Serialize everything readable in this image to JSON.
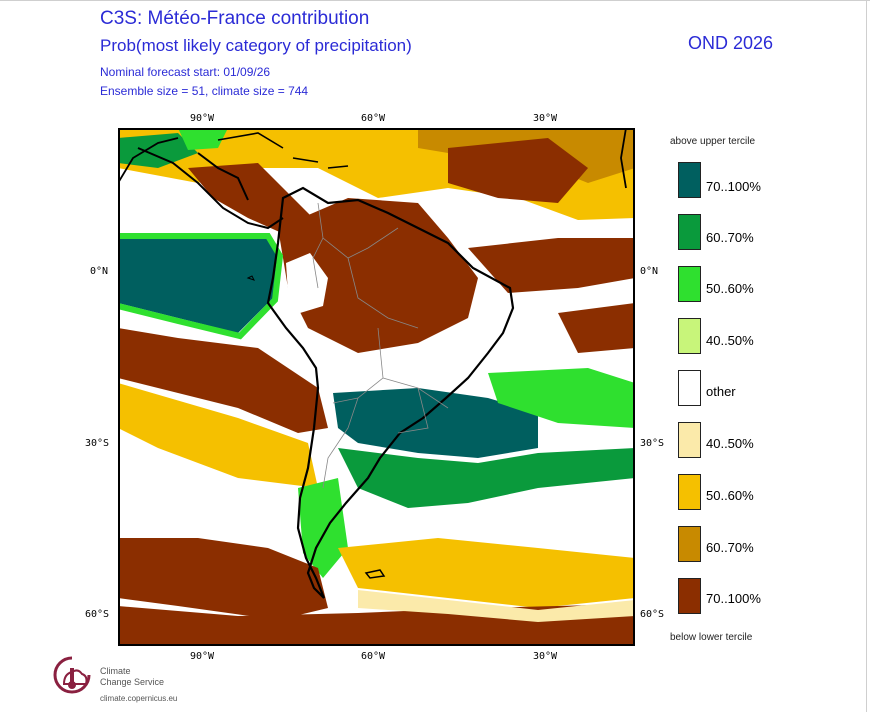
{
  "header": {
    "title": "C3S: Météo-France contribution",
    "subtitle": "Prob(most likely category of precipitation)",
    "forecast_start": "Nominal forecast start: 01/09/26",
    "ensemble": "Ensemble size = 51, climate size = 744",
    "period": "OND 2026"
  },
  "axes": {
    "lon_top": [
      "90°W",
      "60°W",
      "30°W"
    ],
    "lon_bottom": [
      "90°W",
      "60°W",
      "30°W"
    ],
    "lat_left": [
      "0°N",
      "30°S",
      "60°S"
    ],
    "lat_right": [
      "0°N",
      "30°S",
      "60°S"
    ]
  },
  "legend": {
    "top_caption": "above upper tercile",
    "bottom_caption": "below lower tercile",
    "items": [
      {
        "label": "70..100%",
        "color": "#005f5f"
      },
      {
        "label": "60..70%",
        "color": "#0a9a3c"
      },
      {
        "label": "50..60%",
        "color": "#2fe02f"
      },
      {
        "label": "40..50%",
        "color": "#c8f57a"
      },
      {
        "label": "other",
        "color": "#ffffff"
      },
      {
        "label": "40..50%",
        "color": "#fbeaaa"
      },
      {
        "label": "50..60%",
        "color": "#f5c000"
      },
      {
        "label": "60..70%",
        "color": "#c88a00"
      },
      {
        "label": "70..100%",
        "color": "#8b2e00"
      }
    ]
  },
  "logo": {
    "line1": "Climate",
    "line2": "Change Service",
    "url": "climate.copernicus.eu"
  }
}
